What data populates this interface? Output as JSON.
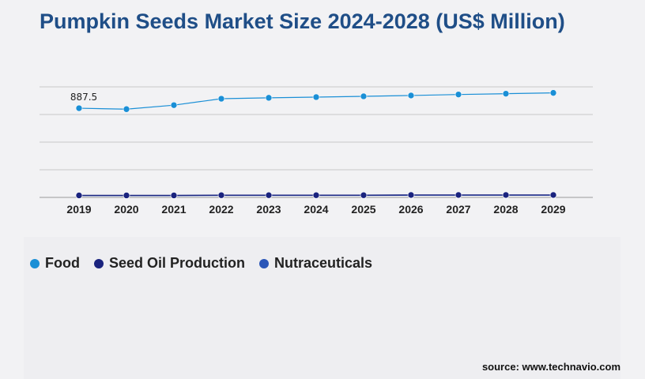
{
  "chart_data": {
    "type": "line",
    "title": "Pumpkin Seeds Market Size 2024-2028 (US$ Million)",
    "categories": [
      "2019",
      "2020",
      "2021",
      "2022",
      "2023",
      "2024",
      "2025",
      "2026",
      "2027",
      "2028",
      "2029"
    ],
    "series": [
      {
        "name": "Food",
        "color": "#1a8fd6",
        "values": [
          887.5,
          878,
          918,
          982,
          991,
          998,
          1006,
          1014,
          1024,
          1032,
          1040
        ]
      },
      {
        "name": "Seed Oil Production",
        "color": "#1a237e",
        "values": [
          20,
          20,
          20,
          22,
          22,
          22,
          22,
          24,
          24,
          24,
          24
        ]
      },
      {
        "name": "Nutraceuticals",
        "color": "#2a56b8",
        "values": [
          18,
          18,
          18,
          20,
          20,
          20,
          20,
          22,
          22,
          22,
          22
        ]
      }
    ],
    "annotations": [
      {
        "series": "Food",
        "category": "2019",
        "text": "887.5"
      }
    ],
    "ylim": [
      0,
      1100
    ],
    "grid": true,
    "legend_position": "bottom-left"
  },
  "source": "source: www.technavio.com"
}
